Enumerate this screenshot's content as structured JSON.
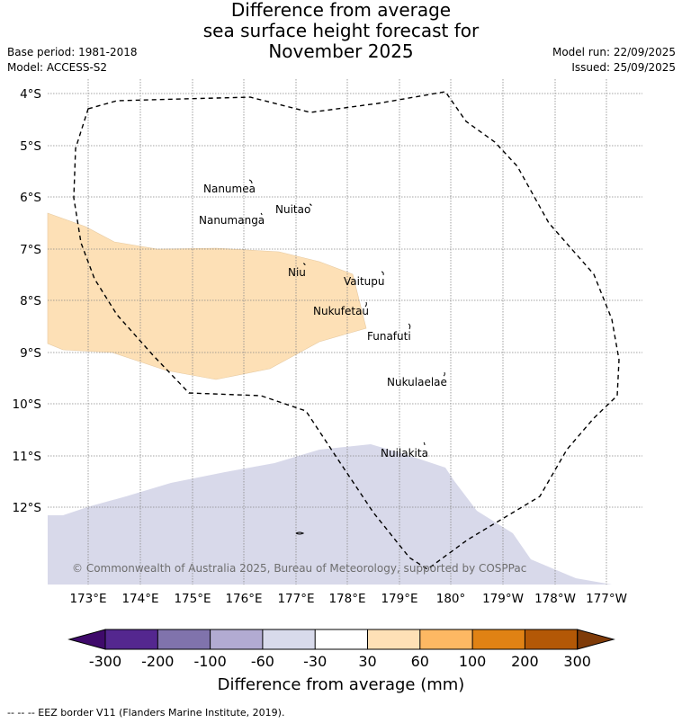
{
  "title": {
    "line1": "Difference from average",
    "line2": "sea surface height forecast for",
    "line3": "November 2025"
  },
  "meta_left": {
    "base_period": "Base period: 1981-2018",
    "model": "Model: ACCESS-S2"
  },
  "meta_right": {
    "model_run": "Model run: 22/09/2025",
    "issued": "Issued: 25/09/2025"
  },
  "map": {
    "lat_ticks": [
      "4°S",
      "5°S",
      "6°S",
      "7°S",
      "8°S",
      "9°S",
      "10°S",
      "11°S",
      "12°S"
    ],
    "lon_ticks": [
      "173°E",
      "174°E",
      "175°E",
      "176°E",
      "177°E",
      "178°E",
      "179°E",
      "180°",
      "179°W",
      "178°W",
      "177°W"
    ],
    "islands": [
      "Nanumea",
      "Nuitao",
      "Nanumanga",
      "Niu",
      "Vaitupu",
      "Nukufetau",
      "Funafuti",
      "Nukulaelae",
      "Nuilakita"
    ],
    "copyright": "© Commonwealth of Australia 2025, Bureau of Meteorology, supported by COSPPac",
    "colors": {
      "positive_30_60": "#fde0b6",
      "negative_60_30": "#d8d9ea",
      "eez_border": "#000000"
    }
  },
  "colorbar": {
    "ticks": [
      "-300",
      "-200",
      "-100",
      "-60",
      "-30",
      "30",
      "60",
      "100",
      "200",
      "300"
    ],
    "colors": [
      "#3f0a6b",
      "#54278f",
      "#8073ac",
      "#b2abd2",
      "#d8daeb",
      "#ffffff",
      "#fee0b6",
      "#fdb863",
      "#e08214",
      "#b35806",
      "#7f3b08"
    ],
    "title": "Difference from average (mm)"
  },
  "footer": "--  --  -- EEZ border V11 (Flanders Marine Institute, 2019)."
}
